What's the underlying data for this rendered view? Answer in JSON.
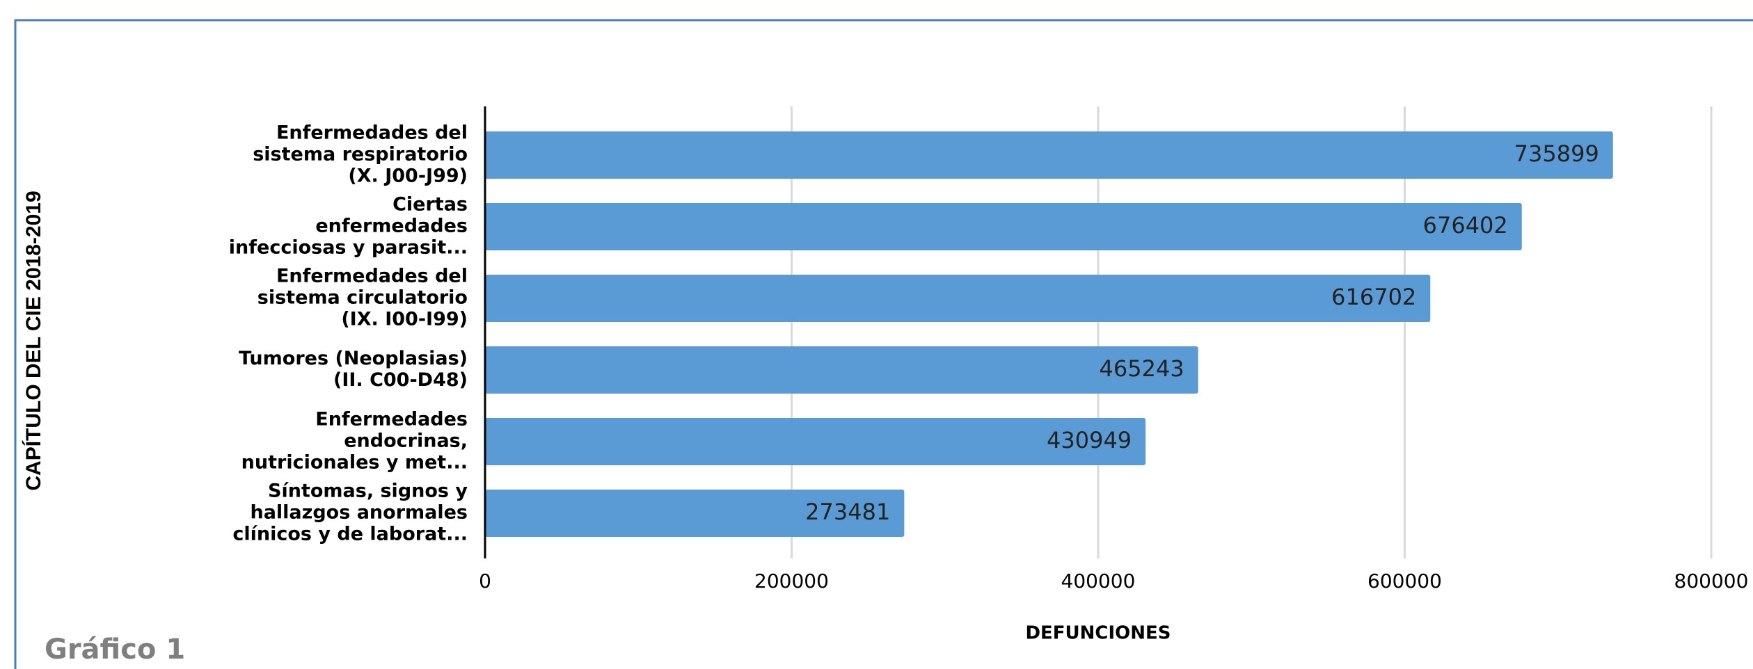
{
  "chart_data": {
    "type": "barh",
    "categories": [
      [
        "Enfermedades del",
        "sistema respiratorio",
        "(X. J00-J99)"
      ],
      [
        "Ciertas",
        "enfermedades",
        "infecciosas y parasit..."
      ],
      [
        "Enfermedades del",
        "sistema circulatorio",
        "(IX. I00-I99)"
      ],
      [
        "Tumores (Neoplasias)",
        "(II. C00-D48)"
      ],
      [
        "Enfermedades",
        "endocrinas,",
        "nutricionales y met..."
      ],
      [
        "Síntomas, signos y",
        "hallazgos anormales",
        "clínicos y de laborat..."
      ]
    ],
    "values": [
      735899,
      676402,
      616702,
      465243,
      430949,
      273481
    ],
    "color": "#5b9bd5",
    "xlim": [
      0,
      800000
    ],
    "xticks": [
      0,
      200000,
      400000,
      600000,
      800000
    ],
    "grid": true,
    "xlabel": "DEFUNCIONES",
    "ylabel": "CAPÍTULO DEL CIE 2018-2019",
    "caption": "Gráfico 1"
  }
}
